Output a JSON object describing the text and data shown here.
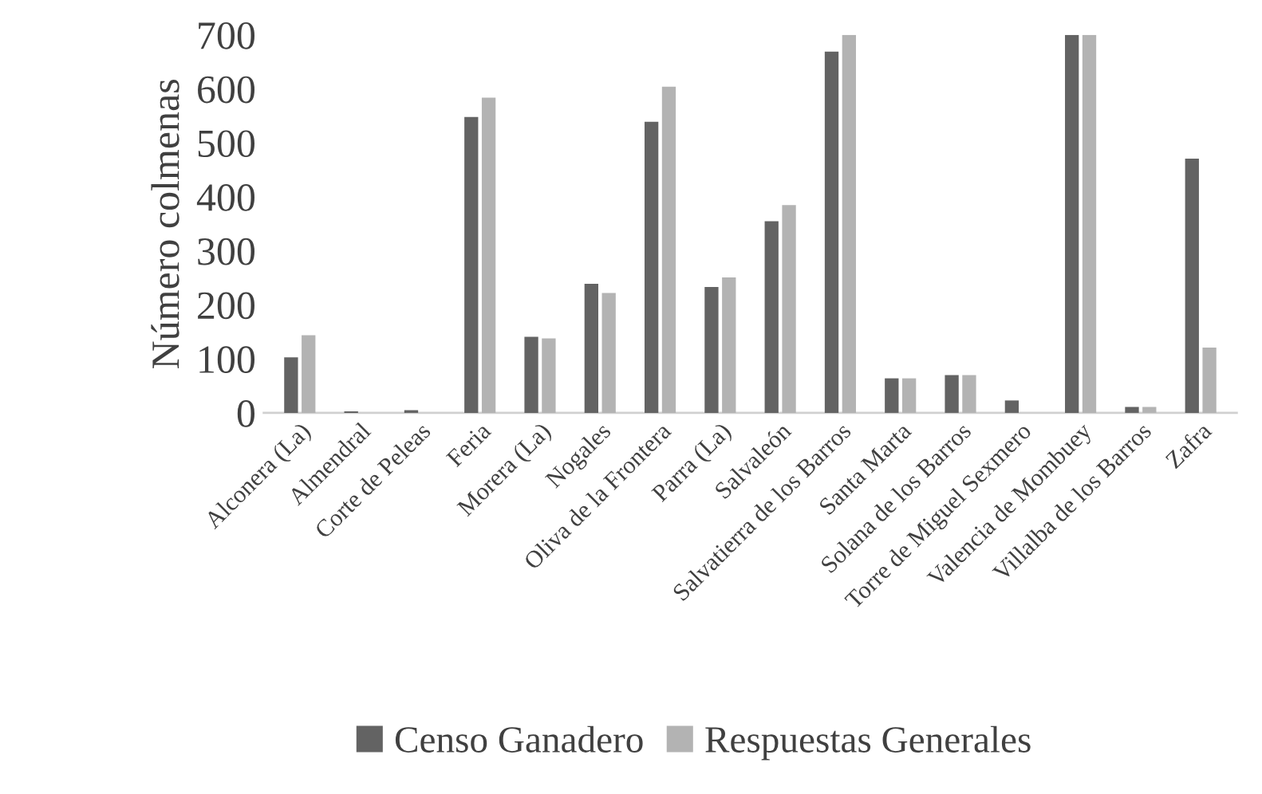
{
  "chart_data": {
    "type": "bar",
    "ylabel": "Número colmenas",
    "categories": [
      "Alconera (La)",
      "Almendral",
      "Corte de Peleas",
      "Feria",
      "Morera (La)",
      "Nogales",
      "Oliva de la Frontera",
      "Parra (La)",
      "Salvaleón",
      "Salvatierra de los Barros",
      "Santa Marta",
      "Solana de los Barros",
      "Torre de Miguel Sexmero",
      "Valencia de Mombuey",
      "Villalba de los Barros",
      "Zafra"
    ],
    "series": [
      {
        "name": "Censo Ganadero",
        "color": "#636363",
        "values": [
          103,
          3,
          5,
          548,
          141,
          239,
          539,
          233,
          355,
          669,
          64,
          70,
          23,
          700,
          11,
          471
        ]
      },
      {
        "name": "Respuestas Generales",
        "color": "#b3b3b3",
        "values": [
          144,
          0,
          0,
          584,
          138,
          222,
          604,
          251,
          385,
          700,
          64,
          70,
          0,
          700,
          11,
          121
        ]
      }
    ],
    "ylim": [
      0,
      700
    ],
    "yticks": [
      0,
      100,
      200,
      300,
      400,
      500,
      600,
      700
    ],
    "grid": false,
    "legend": "bottom"
  }
}
